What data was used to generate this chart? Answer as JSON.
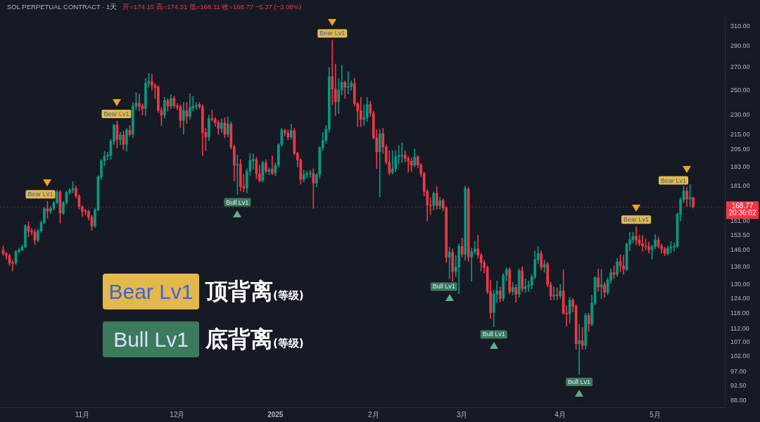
{
  "chart_data": {
    "type": "candlestick",
    "title": "SOL PERPETUAL CONTRACT · 1天",
    "subtitle": "开=174.15 高=174.31 低=168.11 收=168.77 −5.37 (−3.08%)",
    "x": [
      "2024-10-07",
      "2024-10-08",
      "2024-10-09",
      "2024-10-10",
      "2024-10-11",
      "2024-10-12",
      "2024-10-13",
      "2024-10-14",
      "2024-10-15",
      "2024-10-16",
      "2024-10-17",
      "2024-10-18",
      "2024-10-19",
      "2024-10-20",
      "2024-10-21",
      "2024-10-22",
      "2024-10-23",
      "2024-10-24",
      "2024-10-25",
      "2024-10-26",
      "2024-10-27",
      "2024-10-28",
      "2024-10-29",
      "2024-10-30",
      "2024-10-31",
      "2024-11-01",
      "2024-11-02",
      "2024-11-03",
      "2024-11-04",
      "2024-11-05",
      "2024-11-06",
      "2024-11-07",
      "2024-11-08",
      "2024-11-09",
      "2024-11-10",
      "2024-11-11",
      "2024-11-12",
      "2024-11-13",
      "2024-11-14",
      "2024-11-15",
      "2024-11-16",
      "2024-11-17",
      "2024-11-18",
      "2024-11-19",
      "2024-11-20",
      "2024-11-21",
      "2024-11-22",
      "2024-11-23",
      "2024-11-24",
      "2024-11-25",
      "2024-11-26",
      "2024-11-27",
      "2024-11-28",
      "2024-11-29",
      "2024-11-30",
      "2024-12-01",
      "2024-12-02",
      "2024-12-03",
      "2024-12-04",
      "2024-12-05",
      "2024-12-06",
      "2024-12-07",
      "2024-12-08",
      "2024-12-09",
      "2024-12-10",
      "2024-12-11",
      "2024-12-12",
      "2024-12-13",
      "2024-12-14",
      "2024-12-15",
      "2024-12-16",
      "2024-12-17",
      "2024-12-18",
      "2024-12-19",
      "2024-12-20",
      "2024-12-21",
      "2024-12-22",
      "2024-12-23",
      "2024-12-24",
      "2024-12-25",
      "2024-12-26",
      "2024-12-27",
      "2024-12-28",
      "2024-12-29",
      "2024-12-30",
      "2024-12-31",
      "2025-01-01",
      "2025-01-02",
      "2025-01-03",
      "2025-01-04",
      "2025-01-05",
      "2025-01-06",
      "2025-01-07",
      "2025-01-08",
      "2025-01-09",
      "2025-01-10",
      "2025-01-11",
      "2025-01-12",
      "2025-01-13",
      "2025-01-14",
      "2025-01-15",
      "2025-01-16",
      "2025-01-17",
      "2025-01-18",
      "2025-01-19",
      "2025-01-20",
      "2025-01-21",
      "2025-01-22",
      "2025-01-23",
      "2025-01-24",
      "2025-01-25",
      "2025-01-26",
      "2025-01-27",
      "2025-01-28",
      "2025-01-29",
      "2025-01-30",
      "2025-01-31",
      "2025-02-01",
      "2025-02-02",
      "2025-02-03",
      "2025-02-04",
      "2025-02-05",
      "2025-02-06",
      "2025-02-07",
      "2025-02-08",
      "2025-02-09",
      "2025-02-10",
      "2025-02-11",
      "2025-02-12",
      "2025-02-13",
      "2025-02-14",
      "2025-02-15",
      "2025-02-16",
      "2025-02-17",
      "2025-02-18",
      "2025-02-19",
      "2025-02-20",
      "2025-02-21",
      "2025-02-22",
      "2025-02-23",
      "2025-02-24",
      "2025-02-25",
      "2025-02-26",
      "2025-02-27",
      "2025-02-28",
      "2025-03-01",
      "2025-03-02",
      "2025-03-03",
      "2025-03-04",
      "2025-03-05",
      "2025-03-06",
      "2025-03-07",
      "2025-03-08",
      "2025-03-09",
      "2025-03-10",
      "2025-03-11",
      "2025-03-12",
      "2025-03-13",
      "2025-03-14",
      "2025-03-15",
      "2025-03-16",
      "2025-03-17",
      "2025-03-18",
      "2025-03-19",
      "2025-03-20",
      "2025-03-21",
      "2025-03-22",
      "2025-03-23",
      "2025-03-24",
      "2025-03-25",
      "2025-03-26",
      "2025-03-27",
      "2025-03-28",
      "2025-03-29",
      "2025-03-30",
      "2025-03-31",
      "2025-04-01",
      "2025-04-02",
      "2025-04-03",
      "2025-04-04",
      "2025-04-05",
      "2025-04-06",
      "2025-04-07",
      "2025-04-08",
      "2025-04-09",
      "2025-04-10",
      "2025-04-11",
      "2025-04-12",
      "2025-04-13",
      "2025-04-14",
      "2025-04-15",
      "2025-04-16",
      "2025-04-17",
      "2025-04-18",
      "2025-04-19",
      "2025-04-20",
      "2025-04-21",
      "2025-04-22",
      "2025-04-23",
      "2025-04-24",
      "2025-04-25",
      "2025-04-26",
      "2025-04-27",
      "2025-04-28",
      "2025-04-29",
      "2025-04-30",
      "2025-05-01",
      "2025-05-02",
      "2025-05-03",
      "2025-05-04",
      "2025-05-05",
      "2025-05-06",
      "2025-05-07",
      "2025-05-08",
      "2025-05-09",
      "2025-05-10",
      "2025-05-11",
      "2025-05-12",
      "2025-05-13"
    ],
    "ohlc": [
      [
        146.0,
        148.0,
        143.4,
        144.2
      ],
      [
        144.2,
        145.0,
        141.6,
        143.4
      ],
      [
        143.4,
        144.0,
        138.5,
        139.7
      ],
      [
        139.9,
        141.0,
        136.1,
        139.5
      ],
      [
        139.7,
        145.8,
        139.0,
        145.2
      ],
      [
        145.2,
        147.0,
        144.5,
        146.0
      ],
      [
        146.0,
        148.5,
        145.5,
        147.5
      ],
      [
        147.5,
        159.0,
        147.0,
        158.2
      ],
      [
        158.2,
        160.6,
        152.5,
        155.4
      ],
      [
        155.6,
        157.0,
        153.5,
        155.1
      ],
      [
        155.1,
        156.5,
        148.7,
        150.9
      ],
      [
        150.9,
        156.5,
        150.0,
        155.6
      ],
      [
        155.6,
        161.0,
        155.0,
        160.1
      ],
      [
        160.1,
        168.5,
        159.5,
        167.8
      ],
      [
        167.8,
        172.0,
        162.4,
        166.4
      ],
      [
        166.4,
        169.0,
        165.0,
        168.0
      ],
      [
        168.0,
        172.0,
        167.0,
        171.2
      ],
      [
        171.2,
        178.5,
        170.5,
        177.6
      ],
      [
        177.6,
        178.5,
        159.8,
        165.3
      ],
      [
        165.3,
        172.0,
        164.5,
        171.2
      ],
      [
        171.2,
        178.0,
        170.5,
        177.2
      ],
      [
        177.2,
        179.5,
        176.0,
        178.6
      ],
      [
        178.6,
        183.8,
        177.0,
        179.7
      ],
      [
        179.7,
        181.0,
        174.0,
        175.1
      ],
      [
        175.1,
        176.0,
        167.5,
        168.9
      ],
      [
        168.9,
        169.5,
        163.3,
        166.3
      ],
      [
        166.5,
        167.5,
        164.5,
        166.1
      ],
      [
        166.3,
        167.0,
        161.5,
        163.0
      ],
      [
        163.0,
        164.0,
        155.9,
        158.3
      ],
      [
        158.3,
        168.0,
        157.5,
        167.1
      ],
      [
        167.1,
        187.5,
        166.5,
        186.8
      ],
      [
        186.8,
        198.0,
        185.0,
        197.1
      ],
      [
        197.1,
        203.5,
        194.0,
        200.2
      ],
      [
        200.2,
        203.0,
        197.8,
        200.8
      ],
      [
        200.8,
        212.0,
        198.0,
        210.4
      ],
      [
        210.4,
        223.0,
        208.0,
        222.3
      ],
      [
        222.3,
        225.4,
        206.0,
        211.8
      ],
      [
        211.8,
        217.0,
        208.0,
        215.0
      ],
      [
        215.0,
        218.0,
        204.5,
        208.4
      ],
      [
        208.4,
        220.0,
        203.5,
        218.7
      ],
      [
        218.4,
        222.0,
        214.0,
        215.5
      ],
      [
        215.5,
        240.0,
        213.0,
        236.9
      ],
      [
        236.9,
        248.0,
        234.0,
        239.3
      ],
      [
        239.3,
        247.0,
        233.0,
        236.9
      ],
      [
        237.3,
        239.0,
        230.0,
        235.0
      ],
      [
        235.0,
        260.0,
        229.5,
        255.9
      ],
      [
        255.9,
        264.6,
        252.5,
        257.5
      ],
      [
        257.5,
        264.0,
        250.0,
        254.2
      ],
      [
        254.2,
        256.0,
        243.0,
        252.2
      ],
      [
        252.7,
        254.0,
        232.0,
        233.7
      ],
      [
        233.7,
        236.0,
        222.0,
        230.0
      ],
      [
        230.0,
        244.0,
        227.5,
        241.6
      ],
      [
        241.6,
        243.0,
        233.0,
        236.9
      ],
      [
        236.9,
        246.5,
        235.0,
        243.1
      ],
      [
        243.1,
        245.0,
        235.5,
        237.3
      ],
      [
        237.3,
        239.0,
        234.0,
        236.3
      ],
      [
        236.5,
        238.0,
        220.5,
        225.8
      ],
      [
        225.8,
        240.0,
        215.5,
        233.7
      ],
      [
        233.2,
        240.0,
        223.5,
        228.9
      ],
      [
        228.9,
        247.0,
        226.5,
        235.8
      ],
      [
        235.5,
        245.0,
        233.0,
        236.9
      ],
      [
        236.9,
        240.0,
        234.5,
        237.4
      ],
      [
        238.2,
        240.0,
        235.0,
        236.5
      ],
      [
        236.5,
        238.0,
        200.7,
        216.9
      ],
      [
        216.9,
        220.0,
        204.0,
        213.5
      ],
      [
        213.5,
        230.0,
        211.0,
        227.3
      ],
      [
        227.3,
        234.0,
        225.0,
        226.7
      ],
      [
        226.7,
        228.0,
        221.5,
        224.2
      ],
      [
        224.2,
        226.0,
        215.5,
        219.8
      ],
      [
        219.8,
        227.0,
        217.0,
        224.0
      ],
      [
        224.0,
        228.0,
        213.0,
        215.5
      ],
      [
        215.5,
        228.6,
        213.5,
        223.0
      ],
      [
        223.0,
        224.5,
        205.0,
        206.6
      ],
      [
        206.6,
        208.0,
        184.0,
        194.2
      ],
      [
        194.2,
        201.0,
        176.0,
        194.8
      ],
      [
        194.8,
        198.0,
        178.0,
        180.7
      ],
      [
        180.9,
        188.4,
        177.5,
        179.8
      ],
      [
        179.8,
        192.0,
        177.0,
        190.2
      ],
      [
        190.2,
        202.0,
        187.5,
        197.4
      ],
      [
        197.4,
        202.0,
        191.5,
        198.0
      ],
      [
        198.0,
        199.5,
        185.5,
        188.7
      ],
      [
        188.7,
        194.3,
        183.4,
        184.4
      ],
      [
        184.4,
        197.0,
        183.5,
        195.9
      ],
      [
        195.9,
        198.0,
        189.0,
        190.2
      ],
      [
        190.2,
        192.5,
        188.0,
        191.3
      ],
      [
        191.8,
        200.5,
        188.0,
        189.1
      ],
      [
        189.1,
        196.0,
        187.5,
        194.3
      ],
      [
        194.3,
        209.0,
        193.0,
        208.2
      ],
      [
        208.2,
        220.0,
        207.0,
        218.7
      ],
      [
        218.2,
        219.5,
        214.5,
        216.6
      ],
      [
        216.6,
        219.0,
        211.5,
        213.5
      ],
      [
        213.5,
        223.0,
        212.0,
        218.2
      ],
      [
        218.2,
        220.0,
        201.0,
        202.1
      ],
      [
        202.1,
        203.0,
        193.0,
        197.7
      ],
      [
        197.7,
        198.5,
        182.2,
        185.2
      ],
      [
        185.2,
        191.0,
        183.5,
        188.1
      ],
      [
        188.1,
        190.5,
        186.0,
        188.7
      ],
      [
        188.7,
        191.0,
        186.5,
        189.0
      ],
      [
        189.0,
        192.0,
        168.0,
        182.8
      ],
      [
        182.8,
        189.0,
        180.5,
        188.1
      ],
      [
        188.1,
        207.0,
        186.0,
        206.1
      ],
      [
        206.1,
        217.0,
        204.0,
        211.1
      ],
      [
        211.1,
        222.0,
        209.0,
        219.3
      ],
      [
        219.3,
        270.0,
        217.0,
        261.7
      ],
      [
        261.7,
        295.6,
        238.0,
        251.0
      ],
      [
        251.0,
        273.0,
        229.5,
        240.5
      ],
      [
        240.5,
        260.0,
        231.0,
        250.0
      ],
      [
        250.0,
        272.0,
        246.0,
        256.6
      ],
      [
        256.6,
        258.0,
        243.0,
        252.5
      ],
      [
        252.5,
        266.0,
        247.0,
        253.0
      ],
      [
        253.0,
        258.0,
        250.0,
        255.7
      ],
      [
        255.7,
        260.5,
        237.0,
        238.8
      ],
      [
        238.8,
        240.0,
        221.0,
        233.0
      ],
      [
        233.4,
        244.0,
        221.0,
        226.6
      ],
      [
        226.6,
        238.0,
        222.0,
        227.9
      ],
      [
        227.9,
        244.0,
        225.0,
        238.2
      ],
      [
        238.2,
        241.0,
        229.0,
        231.5
      ],
      [
        231.5,
        233.0,
        212.0,
        212.9
      ],
      [
        212.9,
        219.0,
        192.0,
        203.2
      ],
      [
        203.2,
        219.0,
        174.5,
        215.9
      ],
      [
        215.9,
        220.0,
        202.0,
        206.6
      ],
      [
        206.6,
        208.0,
        195.0,
        196.2
      ],
      [
        196.2,
        204.0,
        188.0,
        189.5
      ],
      [
        189.5,
        204.0,
        188.5,
        191.9
      ],
      [
        191.9,
        204.0,
        190.0,
        199.8
      ],
      [
        199.8,
        207.5,
        195.0,
        200.6
      ],
      [
        200.6,
        209.5,
        196.0,
        200.9
      ],
      [
        200.9,
        204.0,
        196.5,
        198.5
      ],
      [
        198.5,
        200.0,
        189.5,
        196.8
      ],
      [
        196.8,
        199.0,
        190.0,
        194.3
      ],
      [
        194.3,
        205.3,
        193.0,
        199.8
      ],
      [
        199.8,
        200.5,
        192.5,
        194.3
      ],
      [
        194.3,
        195.5,
        187.0,
        188.7
      ],
      [
        188.7,
        190.0,
        175.0,
        177.8
      ],
      [
        177.8,
        179.0,
        161.0,
        169.9
      ],
      [
        170.0,
        174.0,
        164.5,
        169.5
      ],
      [
        169.5,
        177.5,
        167.0,
        176.6
      ],
      [
        176.6,
        180.8,
        167.5,
        169.5
      ],
      [
        169.5,
        174.5,
        167.5,
        172.4
      ],
      [
        172.4,
        173.5,
        166.5,
        168.2
      ],
      [
        168.2,
        169.0,
        140.0,
        142.4
      ],
      [
        142.4,
        147.4,
        132.5,
        144.9
      ],
      [
        144.9,
        146.5,
        131.4,
        135.8
      ],
      [
        135.8,
        143.3,
        133.5,
        137.9
      ],
      [
        137.9,
        149.0,
        126.0,
        147.8
      ],
      [
        147.8,
        152.0,
        142.5,
        144.0
      ],
      [
        144.0,
        181.0,
        141.0,
        179.7
      ],
      [
        179.1,
        180.5,
        140.5,
        142.6
      ],
      [
        142.6,
        147.0,
        131.5,
        145.2
      ],
      [
        145.2,
        150.3,
        144.0,
        146.6
      ],
      [
        146.6,
        153.5,
        142.0,
        143.5
      ],
      [
        143.5,
        144.5,
        136.1,
        139.9
      ],
      [
        139.9,
        141.0,
        135.0,
        137.6
      ],
      [
        137.6,
        138.5,
        126.0,
        126.9
      ],
      [
        126.9,
        132.0,
        116.0,
        118.3
      ],
      [
        118.3,
        127.5,
        112.8,
        125.9
      ],
      [
        125.9,
        131.5,
        122.5,
        127.2
      ],
      [
        127.2,
        129.0,
        122.5,
        123.9
      ],
      [
        123.9,
        135.0,
        123.0,
        134.1
      ],
      [
        134.1,
        137.5,
        131.5,
        136.6
      ],
      [
        136.6,
        137.5,
        126.0,
        126.9
      ],
      [
        126.9,
        131.0,
        125.5,
        128.7
      ],
      [
        128.7,
        130.0,
        122.5,
        125.9
      ],
      [
        125.9,
        137.0,
        124.5,
        136.1
      ],
      [
        136.1,
        138.0,
        127.0,
        128.2
      ],
      [
        128.2,
        132.5,
        126.5,
        129.1
      ],
      [
        129.1,
        131.5,
        127.0,
        129.7
      ],
      [
        129.7,
        134.5,
        128.0,
        133.4
      ],
      [
        133.4,
        145.6,
        132.5,
        141.3
      ],
      [
        141.3,
        147.9,
        139.5,
        144.3
      ],
      [
        144.3,
        145.6,
        136.5,
        137.8
      ],
      [
        137.8,
        141.0,
        135.5,
        139.2
      ],
      [
        139.2,
        140.0,
        129.0,
        129.9
      ],
      [
        129.9,
        131.0,
        123.4,
        125.0
      ],
      [
        125.0,
        129.0,
        123.5,
        125.4
      ],
      [
        125.6,
        128.5,
        123.5,
        125.2
      ],
      [
        125.2,
        130.0,
        124.0,
        127.2
      ],
      [
        127.2,
        136.6,
        117.5,
        118.0
      ],
      [
        118.0,
        121.0,
        113.0,
        117.8
      ],
      [
        117.8,
        124.5,
        114.0,
        123.4
      ],
      [
        123.4,
        124.0,
        118.5,
        120.8
      ],
      [
        120.8,
        121.5,
        104.5,
        106.5
      ],
      [
        106.5,
        113.7,
        96.1,
        107.6
      ],
      [
        107.6,
        112.5,
        104.5,
        105.9
      ],
      [
        105.9,
        118.0,
        104.5,
        117.2
      ],
      [
        117.2,
        118.0,
        111.0,
        113.8
      ],
      [
        113.8,
        125.5,
        113.0,
        122.0
      ],
      [
        122.0,
        133.5,
        121.5,
        133.0
      ],
      [
        133.0,
        137.0,
        127.0,
        128.9
      ],
      [
        128.9,
        136.7,
        124.0,
        129.9
      ],
      [
        129.9,
        131.0,
        124.5,
        126.6
      ],
      [
        126.6,
        133.0,
        125.5,
        131.9
      ],
      [
        131.9,
        137.0,
        130.5,
        135.3
      ],
      [
        135.3,
        138.5,
        132.5,
        134.5
      ],
      [
        134.5,
        142.0,
        133.5,
        140.4
      ],
      [
        140.4,
        143.8,
        135.6,
        138.3
      ],
      [
        138.3,
        143.5,
        134.5,
        136.8
      ],
      [
        136.8,
        149.5,
        136.0,
        148.9
      ],
      [
        148.9,
        155.0,
        145.7,
        151.1
      ],
      [
        151.1,
        155.0,
        149.5,
        152.8
      ],
      [
        152.8,
        157.9,
        148.5,
        151.0
      ],
      [
        151.0,
        153.5,
        148.0,
        149.2
      ],
      [
        149.2,
        153.3,
        145.5,
        148.0
      ],
      [
        148.0,
        151.5,
        146.0,
        147.6
      ],
      [
        147.6,
        150.0,
        144.5,
        146.3
      ],
      [
        146.3,
        148.5,
        141.5,
        147.6
      ],
      [
        147.6,
        153.8,
        146.5,
        151.0
      ],
      [
        151.0,
        152.5,
        147.0,
        148.0
      ],
      [
        148.0,
        149.0,
        144.5,
        146.5
      ],
      [
        146.5,
        147.5,
        143.3,
        144.3
      ],
      [
        144.3,
        148.0,
        143.5,
        146.9
      ],
      [
        146.9,
        150.3,
        144.5,
        147.5
      ],
      [
        147.5,
        149.5,
        145.5,
        147.8
      ],
      [
        147.8,
        165.5,
        147.0,
        164.6
      ],
      [
        164.6,
        174.0,
        161.0,
        172.9
      ],
      [
        172.9,
        181.0,
        171.0,
        178.1
      ],
      [
        178.1,
        180.2,
        169.1,
        173.3
      ],
      [
        173.3,
        182.0,
        169.1,
        174.15
      ],
      [
        174.15,
        174.31,
        168.11,
        168.77
      ]
    ],
    "xlim": [
      "2024-10-06",
      "2025-05-23"
    ],
    "xticks": [
      {
        "value": "2024-11-01",
        "label": "11月"
      },
      {
        "value": "2024-12-01",
        "label": "12月"
      },
      {
        "value": "2025-01-01",
        "label": "2025"
      },
      {
        "value": "2025-02-01",
        "label": "2月"
      },
      {
        "value": "2025-03-01",
        "label": "3月"
      },
      {
        "value": "2025-04-01",
        "label": "4月"
      },
      {
        "value": "2025-05-01",
        "label": "5月"
      }
    ],
    "ylim": [
      86,
      320
    ],
    "yticks": [
      {
        "value": 310,
        "label": "310.00"
      },
      {
        "value": 290,
        "label": "290.00"
      },
      {
        "value": 270,
        "label": "270.00"
      },
      {
        "value": 250,
        "label": "250.00"
      },
      {
        "value": 230,
        "label": "230.00"
      },
      {
        "value": 215,
        "label": "215.00"
      },
      {
        "value": 205,
        "label": "205.00"
      },
      {
        "value": 193,
        "label": "193.00"
      },
      {
        "value": 181,
        "label": "181.00"
      },
      {
        "value": 161,
        "label": "161.00"
      },
      {
        "value": 153.5,
        "label": "153.50"
      },
      {
        "value": 146,
        "label": "146.00"
      },
      {
        "value": 138,
        "label": "138.00"
      },
      {
        "value": 130,
        "label": "130.00"
      },
      {
        "value": 124,
        "label": "124.00"
      },
      {
        "value": 118,
        "label": "118.00"
      },
      {
        "value": 112,
        "label": "112.00"
      },
      {
        "value": 107,
        "label": "107.00"
      },
      {
        "value": 102,
        "label": "102.00"
      },
      {
        "value": 97,
        "label": "97.00"
      },
      {
        "value": 92.5,
        "label": "92.50"
      },
      {
        "value": 88,
        "label": "88.00"
      }
    ],
    "log": "y",
    "ref_lines": [
      {
        "axis": "y",
        "value": 168.77,
        "label": "168.77\n20:36:02",
        "color": "#f23645",
        "line_style": "dotted"
      }
    ],
    "annotations": [
      {
        "text": "Bear Lv1",
        "x": "2024-10-21",
        "y": 172.0
      },
      {
        "text": "Bear Lv1",
        "x": "2024-11-12",
        "y": 225.4
      },
      {
        "text": "Bull Lv1",
        "x": "2024-12-20",
        "y": 176.0
      },
      {
        "text": "Bear Lv1",
        "x": "2025-01-19",
        "y": 295.6
      },
      {
        "text": "Bull Lv1",
        "x": "2025-02-25",
        "y": 132.5
      },
      {
        "text": "Bull Lv1",
        "x": "2025-03-11",
        "y": 112.8
      },
      {
        "text": "Bull Lv1",
        "x": "2025-04-07",
        "y": 96.1
      },
      {
        "text": "Bear Lv1",
        "x": "2025-04-25",
        "y": 157.9
      },
      {
        "text": "Bear Lv1",
        "x": "2025-05-11",
        "y": 180.2
      },
      "Bear Lv1",
      "顶背离(等级)",
      "Bull Lv1",
      "底背离(等级)"
    ]
  }
}
